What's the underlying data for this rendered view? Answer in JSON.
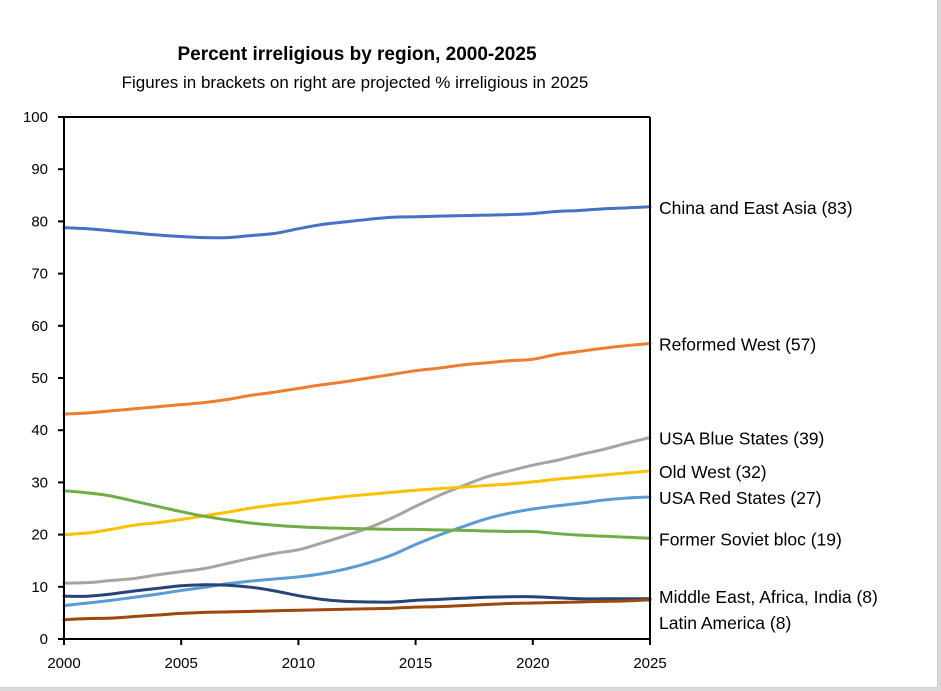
{
  "chart_data": {
    "type": "line",
    "title": "Percent irreligious by region, 2000-2025",
    "subtitle": "Figures in brackets on right are projected % irreligious in 2025",
    "xlabel": "",
    "ylabel": "",
    "xlim": [
      2000,
      2025
    ],
    "ylim": [
      0,
      100
    ],
    "x_ticks": [
      2000,
      2005,
      2010,
      2015,
      2020,
      2025
    ],
    "y_ticks": [
      0,
      10,
      20,
      30,
      40,
      50,
      60,
      70,
      80,
      90,
      100
    ],
    "grid": false,
    "legend": "direct labels at right end of lines",
    "x": [
      2000,
      2001,
      2002,
      2003,
      2004,
      2005,
      2006,
      2007,
      2008,
      2009,
      2010,
      2011,
      2012,
      2013,
      2014,
      2015,
      2016,
      2017,
      2018,
      2019,
      2020,
      2021,
      2022,
      2023,
      2024,
      2025
    ],
    "series": [
      {
        "name": "China and East Asia",
        "label": "China and East Asia (83)",
        "color": "#4472c4",
        "values": [
          78.8,
          78.6,
          78.2,
          77.8,
          77.4,
          77.1,
          76.9,
          76.9,
          77.3,
          77.7,
          78.6,
          79.4,
          79.9,
          80.4,
          80.8,
          80.9,
          81.0,
          81.1,
          81.2,
          81.3,
          81.5,
          81.9,
          82.1,
          82.4,
          82.6,
          82.8
        ]
      },
      {
        "name": "Reformed West",
        "label": "Reformed West  (57)",
        "color": "#ed7d31",
        "values": [
          43.1,
          43.3,
          43.7,
          44.1,
          44.5,
          44.9,
          45.3,
          45.9,
          46.7,
          47.3,
          48.0,
          48.7,
          49.3,
          50.0,
          50.7,
          51.4,
          51.9,
          52.5,
          52.9,
          53.3,
          53.6,
          54.5,
          55.1,
          55.7,
          56.2,
          56.6
        ]
      },
      {
        "name": "USA Blue States",
        "label": "USA Blue States  (39)",
        "color": "#a5a5a5",
        "values": [
          10.7,
          10.8,
          11.2,
          11.6,
          12.3,
          12.9,
          13.5,
          14.5,
          15.5,
          16.4,
          17.1,
          18.4,
          19.8,
          21.3,
          23.2,
          25.4,
          27.5,
          29.3,
          31.0,
          32.2,
          33.3,
          34.2,
          35.3,
          36.3,
          37.5,
          38.6
        ]
      },
      {
        "name": "Old West",
        "label": "Old West  (32)",
        "color": "#ffc000",
        "values": [
          20.0,
          20.3,
          21.0,
          21.8,
          22.3,
          22.9,
          23.6,
          24.3,
          25.1,
          25.7,
          26.2,
          26.8,
          27.3,
          27.7,
          28.1,
          28.5,
          28.8,
          29.1,
          29.4,
          29.7,
          30.1,
          30.6,
          31.0,
          31.4,
          31.8,
          32.2
        ]
      },
      {
        "name": "USA Red States",
        "label": "USA Red States  (27)",
        "color": "#5b9bd5",
        "values": [
          6.4,
          6.9,
          7.4,
          8.0,
          8.6,
          9.3,
          9.9,
          10.6,
          11.1,
          11.5,
          11.9,
          12.5,
          13.4,
          14.6,
          16.1,
          18.1,
          19.9,
          21.5,
          23.0,
          24.1,
          24.9,
          25.5,
          26.0,
          26.6,
          27.0,
          27.2
        ]
      },
      {
        "name": "Former Soviet bloc",
        "label": "Former Soviet bloc (19)",
        "color": "#70ad47",
        "values": [
          28.4,
          28.0,
          27.4,
          26.4,
          25.4,
          24.4,
          23.5,
          22.8,
          22.2,
          21.8,
          21.5,
          21.3,
          21.2,
          21.1,
          21.0,
          21.0,
          20.9,
          20.8,
          20.7,
          20.6,
          20.6,
          20.2,
          19.9,
          19.7,
          19.5,
          19.3
        ]
      },
      {
        "name": "Middle East, Africa, India",
        "label": "Middle East, Africa, India  (8)",
        "color": "#264478",
        "values": [
          8.2,
          8.2,
          8.6,
          9.2,
          9.7,
          10.2,
          10.4,
          10.3,
          9.9,
          9.2,
          8.3,
          7.6,
          7.2,
          7.1,
          7.1,
          7.4,
          7.6,
          7.8,
          8.0,
          8.1,
          8.1,
          7.9,
          7.7,
          7.7,
          7.7,
          7.7
        ]
      },
      {
        "name": "Latin America",
        "label": "Latin America  (8)",
        "color": "#9e480e",
        "values": [
          3.7,
          3.9,
          4.0,
          4.3,
          4.6,
          4.9,
          5.1,
          5.2,
          5.3,
          5.4,
          5.5,
          5.6,
          5.7,
          5.8,
          5.9,
          6.1,
          6.2,
          6.4,
          6.6,
          6.8,
          6.9,
          7.0,
          7.1,
          7.2,
          7.3,
          7.5
        ]
      }
    ]
  }
}
